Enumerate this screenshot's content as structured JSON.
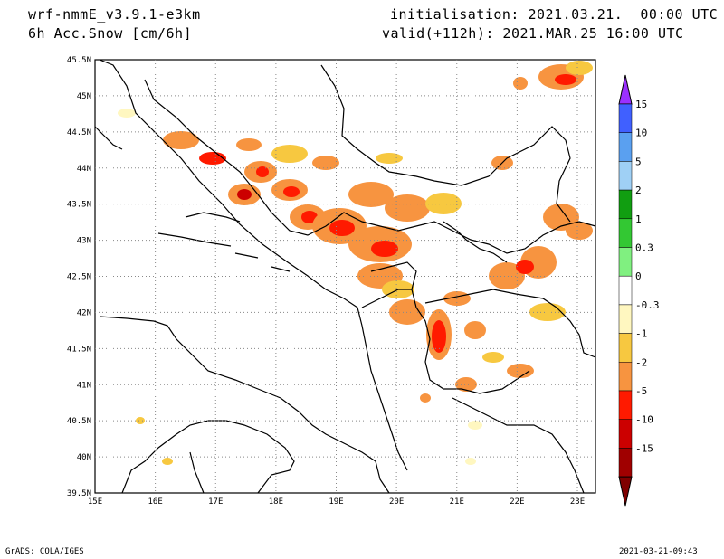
{
  "header": {
    "model": "wrf-nmmE_v3.9.1-e3km",
    "field": "6h Acc.Snow [cm/6h]",
    "init": "initialisation: 2021.03.21.  00:00 UTC",
    "valid": "valid(+112h): 2021.MAR.25 16:00 UTC"
  },
  "footer": {
    "left": "GrADS: COLA/IGES",
    "right": "2021-03-21-09:43"
  },
  "map": {
    "lon_range": [
      15,
      23.3
    ],
    "lat_range": [
      39.5,
      45.5
    ],
    "lon_ticks": [
      "15E",
      "16E",
      "17E",
      "18E",
      "19E",
      "20E",
      "21E",
      "22E",
      "23E"
    ],
    "lat_ticks": [
      "39.5N",
      "40N",
      "40.5N",
      "41N",
      "41.5N",
      "42N",
      "42.5N",
      "43N",
      "43.5N",
      "44N",
      "44.5N",
      "45N",
      "45.5N"
    ]
  },
  "colorbar": {
    "labels": [
      "15",
      "10",
      "5",
      "2",
      "1",
      "0.3",
      "0",
      "-0.3",
      "-1",
      "-2",
      "-5",
      "-10",
      "-15"
    ],
    "colors": [
      "#9b30ff",
      "#4060ff",
      "#5aa0f0",
      "#9fd0f5",
      "#119e11",
      "#33c833",
      "#80f080",
      "#ffffff",
      "#fff7c0",
      "#f7c840",
      "#f79440",
      "#ff1a00",
      "#cc0000",
      "#a00000",
      "#800000"
    ]
  }
}
